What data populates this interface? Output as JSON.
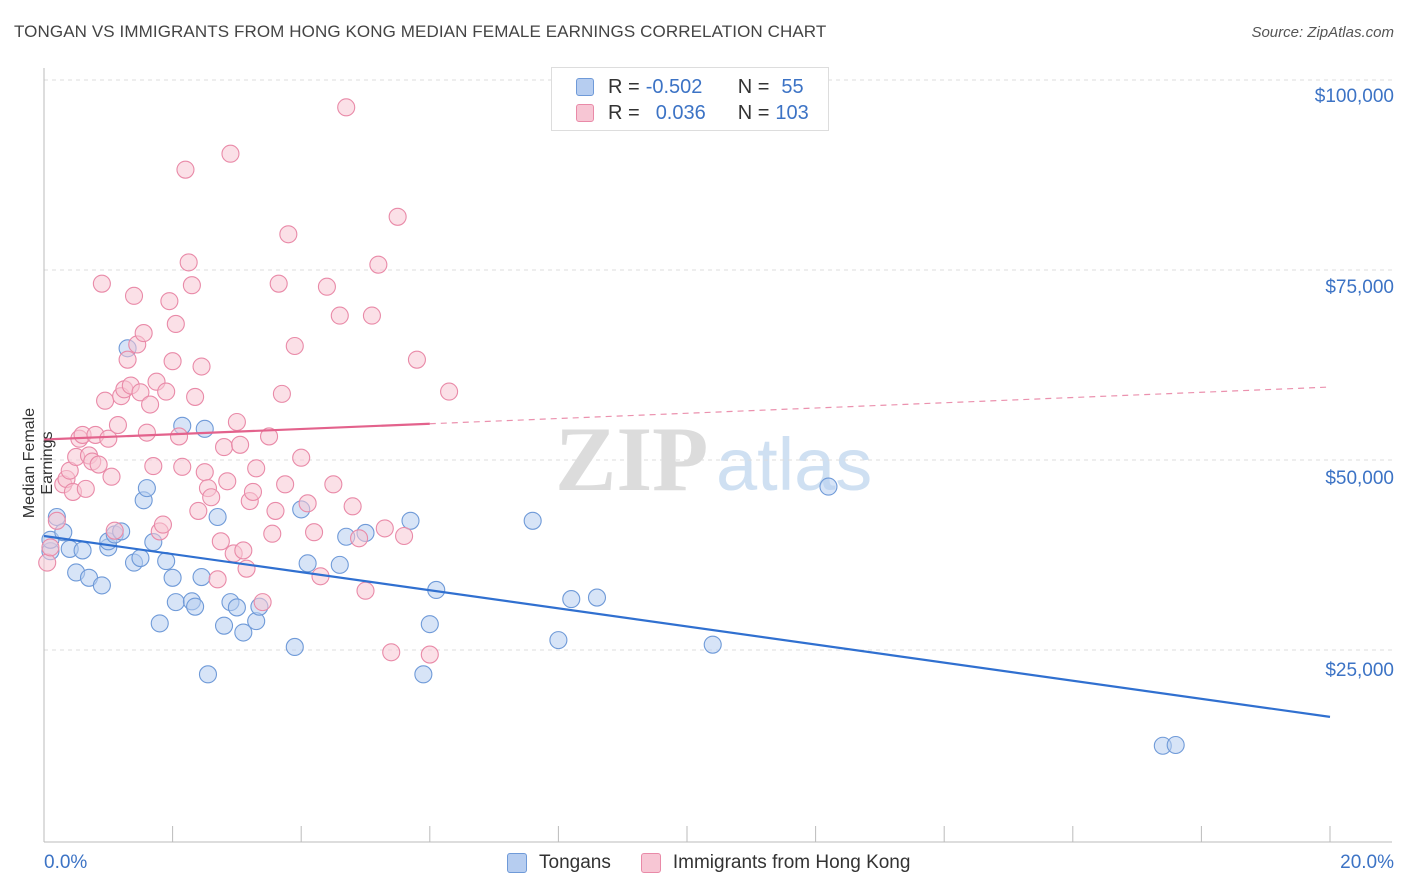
{
  "title": "TONGAN VS IMMIGRANTS FROM HONG KONG MEDIAN FEMALE EARNINGS CORRELATION CHART",
  "source": "Source: ZipAtlas.com",
  "watermark": {
    "zip": "ZIP",
    "atlas": "atlas"
  },
  "legend": {
    "rows": [
      {
        "r_label": "R =",
        "r_value": "-0.502",
        "n_label": "N =",
        "n_value": "55",
        "color": "#a9c4ee",
        "border": "#6f9ad8"
      },
      {
        "r_label": "R =",
        "r_value": "0.036",
        "n_label": "N =",
        "n_value": "103",
        "color": "#f6bccd",
        "border": "#e98aa8"
      }
    ]
  },
  "chart_data": {
    "type": "scatter",
    "title": "TONGAN VS IMMIGRANTS FROM HONG KONG MEDIAN FEMALE EARNINGS CORRELATION CHART",
    "xlabel": "",
    "ylabel": "Median Female Earnings",
    "xlim": [
      0,
      20
    ],
    "ylim": [
      0,
      105000
    ],
    "x_tick_labels": [
      "0.0%",
      "20.0%"
    ],
    "y_ticks": [
      25000,
      50000,
      75000,
      100000
    ],
    "y_tick_labels": [
      "$25,000",
      "$50,000",
      "$75,000",
      "$100,000"
    ],
    "grid": true,
    "legend_position": "top-center",
    "series": [
      {
        "name": "Tongans",
        "color": "#6f9ad8",
        "fill": "#b6cdf0",
        "trend": {
          "x": [
            0,
            20
          ],
          "y": [
            40000,
            16200
          ],
          "solid_until": 20
        },
        "points": [
          [
            0.1,
            38000
          ],
          [
            0.1,
            39500
          ],
          [
            0.2,
            42500
          ],
          [
            0.3,
            40500
          ],
          [
            0.4,
            38300
          ],
          [
            0.5,
            35200
          ],
          [
            0.6,
            38100
          ],
          [
            0.7,
            34500
          ],
          [
            0.9,
            33500
          ],
          [
            1.0,
            38500
          ],
          [
            1.0,
            39300
          ],
          [
            1.1,
            40200
          ],
          [
            1.2,
            40600
          ],
          [
            1.3,
            64700
          ],
          [
            1.4,
            36500
          ],
          [
            1.5,
            37100
          ],
          [
            1.55,
            44700
          ],
          [
            1.6,
            46300
          ],
          [
            1.7,
            39200
          ],
          [
            1.8,
            28500
          ],
          [
            1.9,
            36700
          ],
          [
            2.0,
            34500
          ],
          [
            2.05,
            31300
          ],
          [
            2.15,
            54500
          ],
          [
            2.3,
            31400
          ],
          [
            2.35,
            30700
          ],
          [
            2.45,
            34600
          ],
          [
            2.5,
            54100
          ],
          [
            2.55,
            21800
          ],
          [
            2.7,
            42500
          ],
          [
            2.8,
            28200
          ],
          [
            2.9,
            31300
          ],
          [
            3.0,
            30600
          ],
          [
            3.1,
            27300
          ],
          [
            3.3,
            28800
          ],
          [
            3.35,
            30700
          ],
          [
            3.9,
            25400
          ],
          [
            4.0,
            43500
          ],
          [
            4.1,
            36400
          ],
          [
            4.6,
            36200
          ],
          [
            4.7,
            39900
          ],
          [
            5.0,
            40400
          ],
          [
            5.7,
            42000
          ],
          [
            5.9,
            21800
          ],
          [
            6.0,
            28400
          ],
          [
            6.1,
            32900
          ],
          [
            7.6,
            42000
          ],
          [
            8.0,
            26300
          ],
          [
            8.2,
            31700
          ],
          [
            8.6,
            31900
          ],
          [
            10.4,
            25700
          ],
          [
            12.2,
            46500
          ],
          [
            17.4,
            12400
          ],
          [
            17.6,
            12500
          ]
        ]
      },
      {
        "name": "Immigrants from Hong Kong",
        "color": "#e98aa8",
        "fill": "#f7c6d4",
        "trend": {
          "x": [
            0,
            20
          ],
          "y": [
            52700,
            59600
          ],
          "solid_until": 6.0
        },
        "points": [
          [
            0.05,
            36500
          ],
          [
            0.1,
            38500
          ],
          [
            0.2,
            42000
          ],
          [
            0.3,
            46800
          ],
          [
            0.35,
            47500
          ],
          [
            0.4,
            48600
          ],
          [
            0.45,
            45800
          ],
          [
            0.5,
            50400
          ],
          [
            0.55,
            52800
          ],
          [
            0.6,
            53300
          ],
          [
            0.65,
            46200
          ],
          [
            0.7,
            50600
          ],
          [
            0.75,
            49800
          ],
          [
            0.8,
            53300
          ],
          [
            0.85,
            49400
          ],
          [
            0.9,
            73200
          ],
          [
            0.95,
            57800
          ],
          [
            1.0,
            52800
          ],
          [
            1.05,
            47800
          ],
          [
            1.1,
            40700
          ],
          [
            1.15,
            54600
          ],
          [
            1.2,
            58400
          ],
          [
            1.25,
            59300
          ],
          [
            1.3,
            63200
          ],
          [
            1.35,
            59800
          ],
          [
            1.4,
            71600
          ],
          [
            1.45,
            65200
          ],
          [
            1.5,
            58900
          ],
          [
            1.55,
            66700
          ],
          [
            1.6,
            53600
          ],
          [
            1.65,
            57300
          ],
          [
            1.7,
            49200
          ],
          [
            1.75,
            60300
          ],
          [
            1.8,
            40600
          ],
          [
            1.85,
            41500
          ],
          [
            1.9,
            59000
          ],
          [
            1.95,
            70900
          ],
          [
            2.0,
            63000
          ],
          [
            2.05,
            67900
          ],
          [
            2.1,
            53100
          ],
          [
            2.15,
            49100
          ],
          [
            2.2,
            88200
          ],
          [
            2.25,
            76000
          ],
          [
            2.3,
            73000
          ],
          [
            2.35,
            58300
          ],
          [
            2.4,
            43300
          ],
          [
            2.45,
            62300
          ],
          [
            2.5,
            48400
          ],
          [
            2.55,
            46300
          ],
          [
            2.6,
            45100
          ],
          [
            2.7,
            34300
          ],
          [
            2.75,
            39300
          ],
          [
            2.8,
            51700
          ],
          [
            2.85,
            47200
          ],
          [
            2.9,
            90300
          ],
          [
            2.95,
            37700
          ],
          [
            3.0,
            55000
          ],
          [
            3.05,
            52000
          ],
          [
            3.1,
            38100
          ],
          [
            3.15,
            35700
          ],
          [
            3.2,
            44600
          ],
          [
            3.25,
            45800
          ],
          [
            3.3,
            48900
          ],
          [
            3.4,
            31300
          ],
          [
            3.5,
            53100
          ],
          [
            3.55,
            40300
          ],
          [
            3.6,
            43300
          ],
          [
            3.65,
            73200
          ],
          [
            3.7,
            58700
          ],
          [
            3.75,
            46800
          ],
          [
            3.8,
            79700
          ],
          [
            3.9,
            65000
          ],
          [
            4.0,
            50300
          ],
          [
            4.1,
            44300
          ],
          [
            4.2,
            40500
          ],
          [
            4.3,
            34700
          ],
          [
            4.4,
            72800
          ],
          [
            4.5,
            46800
          ],
          [
            4.6,
            69000
          ],
          [
            4.7,
            96400
          ],
          [
            4.8,
            43900
          ],
          [
            4.9,
            39700
          ],
          [
            5.0,
            32800
          ],
          [
            5.1,
            69000
          ],
          [
            5.2,
            75700
          ],
          [
            5.3,
            41000
          ],
          [
            5.4,
            24700
          ],
          [
            5.5,
            82000
          ],
          [
            5.6,
            40000
          ],
          [
            5.8,
            63200
          ],
          [
            6.0,
            24400
          ],
          [
            6.3,
            59000
          ]
        ]
      }
    ]
  },
  "bottom_legend": [
    {
      "label": "Tongans",
      "color": "#b6cdf0",
      "border": "#6f9ad8"
    },
    {
      "label": "Immigrants from Hong Kong",
      "color": "#f7c6d4",
      "border": "#e98aa8"
    }
  ]
}
